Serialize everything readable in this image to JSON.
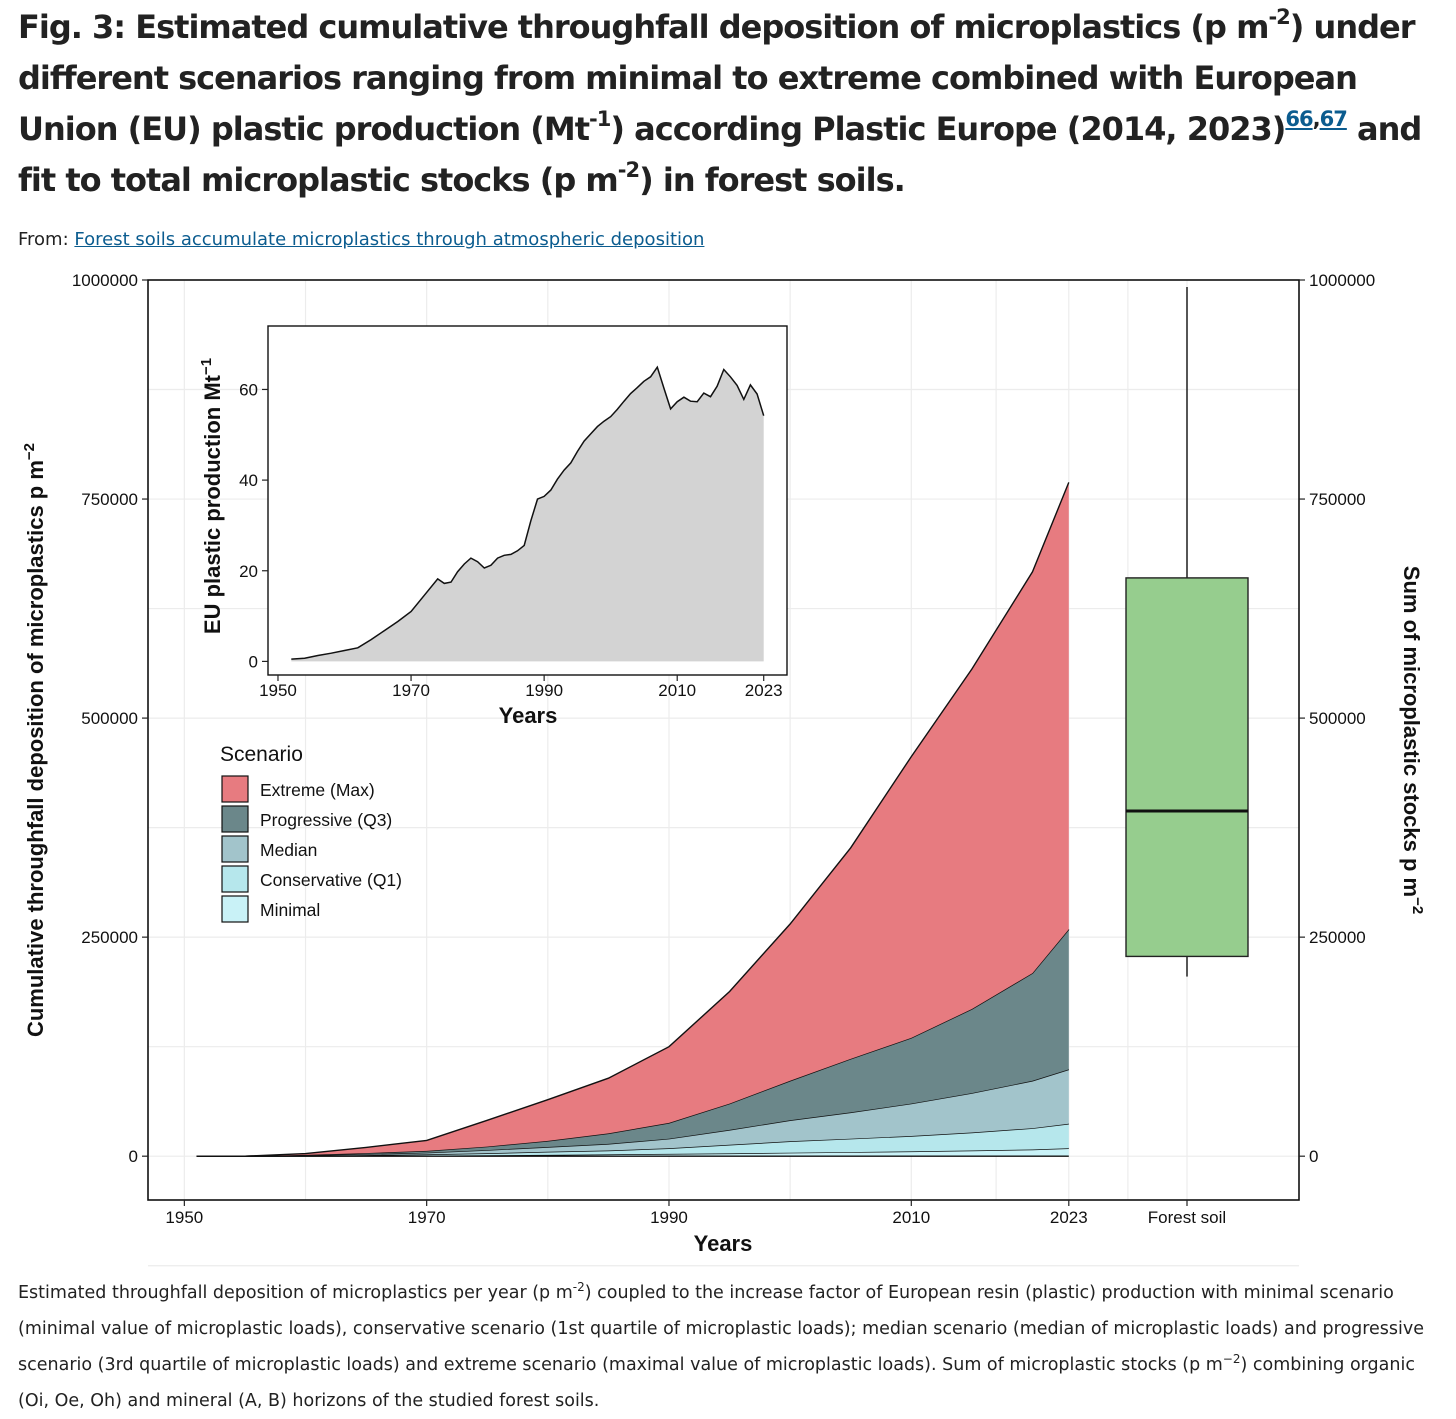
{
  "figure": {
    "title_parts": {
      "p1": "Fig. 3: Estimated cumulative throughfall deposition of microplastics (p m",
      "s1": "-2",
      "p2": ") under different scenarios ranging from minimal to extreme combined with European Union (EU) plastic production (Mt",
      "s2": "-1",
      "p3": ") according Plastic Europe (2014, 2023)",
      "ref1": "66",
      "comma": ",",
      "ref2": "67",
      "p4": " and fit to total microplastic stocks (p m",
      "s3": "-2",
      "p5": ") in forest soils."
    },
    "from_label": "From: ",
    "from_link": "Forest soils accumulate microplastics through atmospheric deposition",
    "caption_parts": {
      "c1": "Estimated throughfall deposition of microplastics per year (p m",
      "cs1": "-2",
      "c2": ") coupled to the increase factor of European resin (plastic) production with minimal scenario (minimal value of microplastic loads), conservative scenario (1st quartile of microplastic loads); median scenario (median of microplastic loads) and progressive scenario (3rd quartile of microplastic loads) and extreme scenario (maximal value of microplastic loads). Sum of microplastic stocks (p m",
      "cs2": "−2",
      "c3": ") combining organic (Oi, Oe, Oh) and mineral (A, B) horizons of the studied forest soils."
    }
  },
  "chart_data": [
    {
      "type": "area",
      "stacked": true,
      "title": "",
      "xlabel": "Years",
      "ylabel": "Cumulative throughfall deposition of microplastics p m",
      "ylabel_sup": "−2",
      "ylabel_right": "Sum of microplastic stocks p m",
      "ylabel_right_sup": "−2",
      "xlim": [
        1947,
        2042
      ],
      "ylim": [
        -50000,
        1000000
      ],
      "x_ticks": [
        "1950",
        "1970",
        "1990",
        "2010",
        "2023"
      ],
      "y_ticks": [
        "0",
        "250000",
        "500000",
        "750000",
        "1000000"
      ],
      "extra_category": "Forest soil",
      "grid": true,
      "legend_title": "Scenario",
      "legend_position": "center-left",
      "x": [
        1951,
        1955,
        1960,
        1965,
        1970,
        1975,
        1980,
        1985,
        1990,
        1995,
        2000,
        2005,
        2010,
        2015,
        2020,
        2023
      ],
      "series": [
        {
          "name": "Minimal",
          "color": "#c9f2f7",
          "values": [
            0,
            0,
            200,
            400,
            700,
            1000,
            1500,
            2000,
            2600,
            3200,
            4000,
            4700,
            5500,
            6500,
            7600,
            9000
          ]
        },
        {
          "name": "Conservative (Q1)",
          "color": "#b6e7ec",
          "values": [
            0,
            0,
            300,
            800,
            1300,
            2300,
            3500,
            4500,
            6400,
            9800,
            13000,
            15300,
            17500,
            20500,
            24400,
            28000
          ]
        },
        {
          "name": "Median",
          "color": "#a2c4cb",
          "values": [
            0,
            0,
            500,
            1200,
            2000,
            3700,
            5500,
            7500,
            11000,
            17000,
            24000,
            30000,
            37000,
            45000,
            54000,
            62000
          ]
        },
        {
          "name": "Progressive (Q3)",
          "color": "#6b878a",
          "values": [
            0,
            0,
            500,
            1100,
            2000,
            4000,
            7000,
            12000,
            18000,
            30000,
            45000,
            61000,
            75000,
            96000,
            123000,
            160000
          ]
        },
        {
          "name": "Extreme (Max)",
          "color": "#e77b80",
          "values": [
            0,
            0,
            1500,
            6500,
            12000,
            30000,
            47000,
            63000,
            87000,
            128000,
            179000,
            241000,
            321000,
            388000,
            458000,
            510000
          ]
        }
      ],
      "boxplot": {
        "category": "Forest soil",
        "color": "#96cd8e",
        "min": 205000,
        "q1": 228000,
        "median": 394000,
        "q3": 660000,
        "max": 992000
      }
    },
    {
      "type": "area",
      "title": "",
      "xlabel": "Years",
      "ylabel": "EU plastic production Mt",
      "ylabel_sup": "−1",
      "xlim": [
        1948.5,
        2026.5
      ],
      "ylim": [
        -3,
        74
      ],
      "x_ticks": [
        "1950",
        "1970",
        "1990",
        "2010",
        "2023"
      ],
      "y_ticks": [
        "0",
        "20",
        "40",
        "60"
      ],
      "color": "#d3d3d3",
      "x": [
        1952,
        1954,
        1955,
        1956,
        1958,
        1960,
        1962,
        1964,
        1966,
        1968,
        1970,
        1972,
        1974,
        1975,
        1976,
        1977,
        1978,
        1979,
        1980,
        1981,
        1982,
        1983,
        1984,
        1985,
        1986,
        1987,
        1988,
        1989,
        1990,
        1991,
        1992,
        1993,
        1994,
        1995,
        1996,
        1997,
        1998,
        1999,
        2000,
        2001,
        2002,
        2003,
        2004,
        2005,
        2006,
        2007,
        2008,
        2009,
        2010,
        2011,
        2012,
        2013,
        2014,
        2015,
        2016,
        2017,
        2018,
        2019,
        2020,
        2021,
        2022,
        2023
      ],
      "values": [
        0.5,
        0.7,
        1.0,
        1.3,
        1.8,
        2.4,
        3.0,
        4.8,
        6.8,
        8.8,
        11.0,
        14.6,
        18.2,
        17.2,
        17.5,
        19.8,
        21.5,
        22.8,
        22.0,
        20.6,
        21.2,
        22.8,
        23.4,
        23.6,
        24.4,
        25.6,
        31.0,
        35.8,
        36.4,
        37.8,
        40.2,
        42.2,
        43.8,
        46.3,
        48.6,
        50.2,
        51.8,
        53.0,
        54.0,
        55.6,
        57.4,
        59.1,
        60.4,
        61.8,
        62.8,
        64.9,
        60.3,
        55.7,
        57.3,
        58.3,
        57.4,
        57.3,
        59.2,
        58.4,
        60.7,
        64.4,
        62.8,
        60.9,
        57.8,
        61.0,
        59.0,
        54.2
      ]
    }
  ]
}
